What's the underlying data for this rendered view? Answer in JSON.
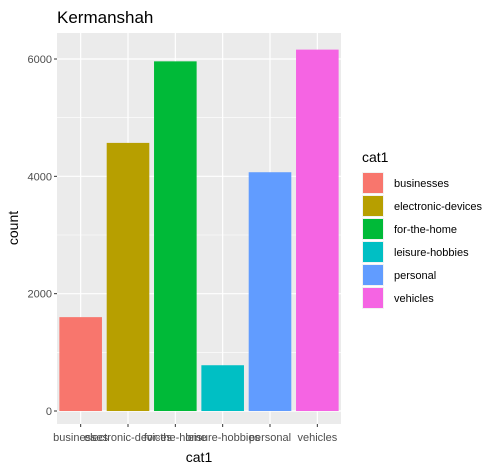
{
  "chart_data": {
    "type": "bar",
    "title": "Kermanshah",
    "xlabel": "cat1",
    "ylabel": "count",
    "categories": [
      "businesses",
      "electronic-devices",
      "for-the-home",
      "leisure-hobbies",
      "personal",
      "vehicles"
    ],
    "values": [
      1600,
      4570,
      5960,
      780,
      4070,
      6160
    ],
    "colors": [
      "#F8766D",
      "#B79F00",
      "#00BA38",
      "#00BFC4",
      "#619CFF",
      "#F564E3"
    ],
    "ylim": [
      0,
      6500
    ],
    "yticks": [
      0,
      2000,
      4000,
      6000
    ],
    "yticks_labels": [
      "0",
      "2000",
      "4000",
      "6000"
    ],
    "grid": true,
    "panel_background": "#EBEBEB",
    "legend": {
      "title": "cat1",
      "placement": "right",
      "entries": [
        "businesses",
        "electronic-devices",
        "for-the-home",
        "leisure-hobbies",
        "personal",
        "vehicles"
      ]
    }
  }
}
